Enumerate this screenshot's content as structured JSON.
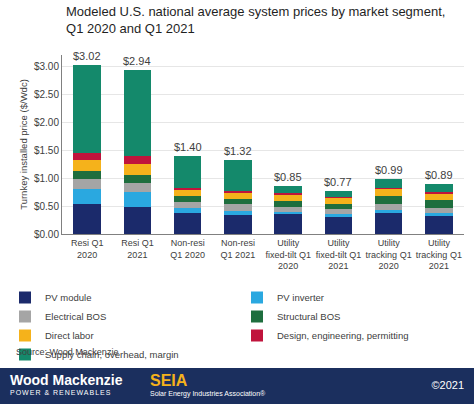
{
  "chart_data": {
    "type": "bar",
    "stacked": true,
    "title": "Modeled U.S. national average system prices by market segment,\nQ1 2020 and Q1 2021",
    "y_label": "Turnkey installed price ($/Wdc)",
    "categories": [
      "Resi Q1\n2020",
      "Resi Q1\n2021",
      "Non-resi\nQ1 2020",
      "Non-resi\nQ1 2021",
      "Utility\nfixed-tilt Q1\n2020",
      "Utility\nfixed-tilt Q1\n2021",
      "Utility\ntracking Q1\n2020",
      "Utility\ntracking Q1\n2021"
    ],
    "series": [
      {
        "name": "PV module",
        "color": "#1b2a6b",
        "values": [
          0.53,
          0.49,
          0.38,
          0.34,
          0.35,
          0.31,
          0.38,
          0.33
        ]
      },
      {
        "name": "PV inverter",
        "color": "#2aa8e0",
        "values": [
          0.28,
          0.26,
          0.08,
          0.08,
          0.05,
          0.05,
          0.05,
          0.05
        ]
      },
      {
        "name": "Electrical BOS",
        "color": "#a5a5a5",
        "values": [
          0.18,
          0.17,
          0.12,
          0.11,
          0.09,
          0.09,
          0.1,
          0.09
        ]
      },
      {
        "name": "Structural BOS",
        "color": "#1e6e3e",
        "values": [
          0.14,
          0.14,
          0.1,
          0.1,
          0.1,
          0.09,
          0.15,
          0.14
        ]
      },
      {
        "name": "Direct labor",
        "color": "#f5b21b",
        "values": [
          0.2,
          0.2,
          0.1,
          0.1,
          0.11,
          0.1,
          0.12,
          0.11
        ]
      },
      {
        "name": "Design, engineering, permitting",
        "color": "#c0143c",
        "values": [
          0.12,
          0.13,
          0.04,
          0.04,
          0.03,
          0.03,
          0.03,
          0.03
        ]
      },
      {
        "name": "Supply chain, overhead, margin",
        "color": "#14896b",
        "values": [
          1.57,
          1.55,
          0.58,
          0.55,
          0.12,
          0.1,
          0.16,
          0.14
        ]
      }
    ],
    "totals": {
      "values": [
        3.02,
        2.94,
        1.4,
        1.32,
        0.85,
        0.77,
        0.99,
        0.89
      ],
      "value_labels": [
        "$3.02",
        "$2.94",
        "$1.40",
        "$1.32",
        "$0.85",
        "$0.77",
        "$0.99",
        "$0.89"
      ]
    },
    "ylim": [
      0,
      3.2
    ],
    "yticks": [
      {
        "value": 0,
        "label": "$0.00"
      },
      {
        "value": 0.5,
        "label": "$0.50"
      },
      {
        "value": 1,
        "label": "$1.00"
      },
      {
        "value": 1.5,
        "label": "$1.50"
      },
      {
        "value": 2,
        "label": "$2.00"
      },
      {
        "value": 2.5,
        "label": "$2.50"
      },
      {
        "value": 3,
        "label": "$3.00"
      }
    ],
    "grid": true,
    "legend": "bottom",
    "source": "Source: Wood Mackenzie"
  },
  "footer": {
    "left_logo": "Wood Mackenzie",
    "left_sub": "POWER & RENEWABLES",
    "center_logo": "SEIA",
    "center_sub": "Solar Energy Industries Association®",
    "right": "©2021"
  }
}
